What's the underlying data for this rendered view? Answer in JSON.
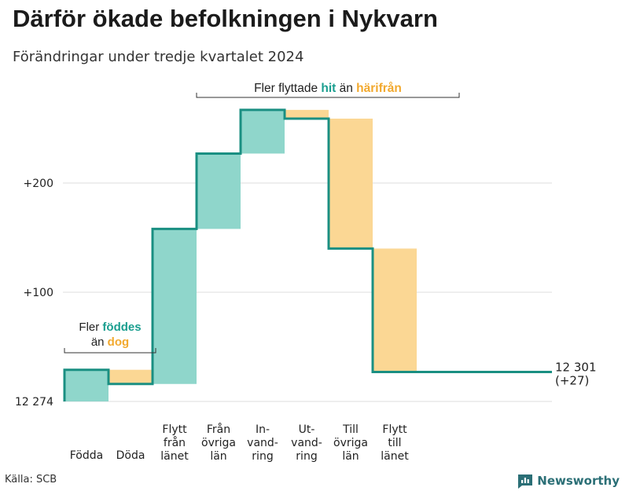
{
  "title": "Därför ökade befolkningen i Nykvarn",
  "subtitle": "Förändringar under tredje kvartalet 2024",
  "source": "Källa: SCB",
  "brand": "Newsworthy",
  "colors": {
    "increase": "#8fd6cb",
    "decrease": "#fbd794",
    "step_line": "#1a8f82",
    "accent_teal": "#1a9e8f",
    "accent_orange": "#f2a92e",
    "grid": "#e3e3e3",
    "brand": "#2b6f76"
  },
  "annotations": {
    "births": {
      "line1_prefix": "Fler ",
      "line1_highlight": "föddes",
      "line2_prefix": "än ",
      "line2_highlight": "dog"
    },
    "migration": {
      "prefix": "Fler flyttade ",
      "highlight1": "hit",
      "middle": " än ",
      "highlight2": "härifrån"
    }
  },
  "chart_data": {
    "type": "waterfall",
    "base": 12274,
    "base_label": "12 274",
    "end_value": 12301,
    "end_label_line1": "12 301",
    "end_label_line2": "(+27)",
    "ylim": [
      0,
      265
    ],
    "yticks": [
      {
        "value": 100,
        "label": "+100"
      },
      {
        "value": 200,
        "label": "+200"
      }
    ],
    "grid": true,
    "steps": [
      {
        "label_lines": [
          "Födda"
        ],
        "change": 29
      },
      {
        "label_lines": [
          "Döda"
        ],
        "change": -13
      },
      {
        "label_lines": [
          "Flytt",
          "från",
          "länet"
        ],
        "change": 142
      },
      {
        "label_lines": [
          "Från",
          "övriga",
          "län"
        ],
        "change": 69
      },
      {
        "label_lines": [
          "In-",
          "vand-",
          "ring"
        ],
        "change": 40
      },
      {
        "label_lines": [
          "Ut-",
          "vand-",
          "ring"
        ],
        "change": -8
      },
      {
        "label_lines": [
          "Till",
          "övriga",
          "län"
        ],
        "change": -119
      },
      {
        "label_lines": [
          "Flytt",
          "till",
          "länet"
        ],
        "change": -113
      }
    ]
  }
}
